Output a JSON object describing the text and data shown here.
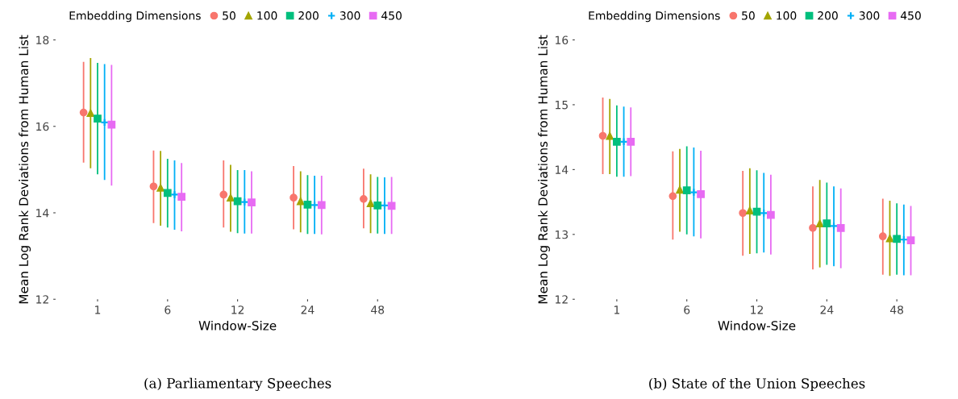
{
  "chart_data": [
    {
      "type": "scatter",
      "xlabel": "Window-Size",
      "ylabel": "Mean Log Rank Deviations from Human List",
      "legend_title": "Embedding Dimensions",
      "legend": "top",
      "grid": false,
      "categories": [
        "1",
        "6",
        "12",
        "24",
        "48"
      ],
      "ylim": [
        12,
        18
      ],
      "yticks": [
        12,
        14,
        16,
        18
      ],
      "annotations": [
        "(a) Parliamentary Speeches"
      ],
      "series": [
        {
          "name": "50",
          "color": "#f8766d",
          "marker": "circle",
          "values": [
            16.32,
            14.61,
            14.42,
            14.35,
            14.32
          ],
          "errors": [
            [
              15.16,
              17.49
            ],
            [
              13.76,
              15.44
            ],
            [
              13.66,
              15.21
            ],
            [
              13.62,
              15.08
            ],
            [
              13.64,
              15.02
            ]
          ]
        },
        {
          "name": "100",
          "color": "#a3a500",
          "marker": "triangle",
          "values": [
            16.31,
            14.58,
            14.35,
            14.27,
            14.22
          ],
          "errors": [
            [
              15.03,
              17.58
            ],
            [
              13.7,
              15.43
            ],
            [
              13.56,
              15.11
            ],
            [
              13.55,
              14.96
            ],
            [
              13.53,
              14.89
            ]
          ]
        },
        {
          "name": "200",
          "color": "#00bf7d",
          "marker": "square",
          "values": [
            16.18,
            14.46,
            14.27,
            14.19,
            14.17
          ],
          "errors": [
            [
              14.89,
              17.47
            ],
            [
              13.66,
              15.25
            ],
            [
              13.53,
              14.99
            ],
            [
              13.51,
              14.87
            ],
            [
              13.52,
              14.83
            ]
          ]
        },
        {
          "name": "300",
          "color": "#00b0f6",
          "marker": "cross",
          "values": [
            16.09,
            14.42,
            14.25,
            14.18,
            14.17
          ],
          "errors": [
            [
              14.76,
              17.44
            ],
            [
              13.61,
              15.21
            ],
            [
              13.52,
              14.99
            ],
            [
              13.51,
              14.86
            ],
            [
              13.51,
              14.82
            ]
          ]
        },
        {
          "name": "450",
          "color": "#e76bf3",
          "marker": "square",
          "values": [
            16.04,
            14.37,
            14.24,
            14.18,
            14.16
          ],
          "errors": [
            [
              14.63,
              17.42
            ],
            [
              13.57,
              15.15
            ],
            [
              13.52,
              14.96
            ],
            [
              13.5,
              14.86
            ],
            [
              13.51,
              14.83
            ]
          ]
        }
      ]
    },
    {
      "type": "scatter",
      "xlabel": "Window-Size",
      "ylabel": "Mean Log Rank Deviations from Human List",
      "legend_title": "Embedding Dimensions",
      "legend": "top",
      "grid": false,
      "categories": [
        "1",
        "6",
        "12",
        "24",
        "48"
      ],
      "ylim": [
        12,
        16
      ],
      "yticks": [
        12,
        13,
        14,
        15,
        16
      ],
      "annotations": [
        "(b) State of the Union Speeches"
      ],
      "series": [
        {
          "name": "50",
          "color": "#f8766d",
          "marker": "circle",
          "values": [
            14.52,
            13.59,
            13.33,
            13.1,
            12.97
          ],
          "errors": [
            [
              13.93,
              15.11
            ],
            [
              12.92,
              14.28
            ],
            [
              12.67,
              13.98
            ],
            [
              12.46,
              13.74
            ],
            [
              12.38,
              13.55
            ]
          ]
        },
        {
          "name": "100",
          "color": "#a3a500",
          "marker": "triangle",
          "values": [
            14.52,
            13.69,
            13.37,
            13.17,
            12.94
          ],
          "errors": [
            [
              13.93,
              15.09
            ],
            [
              13.04,
              14.32
            ],
            [
              12.7,
              14.02
            ],
            [
              12.49,
              13.84
            ],
            [
              12.36,
              13.52
            ]
          ]
        },
        {
          "name": "200",
          "color": "#00bf7d",
          "marker": "square",
          "values": [
            14.43,
            13.68,
            13.35,
            13.17,
            12.93
          ],
          "errors": [
            [
              13.89,
              14.99
            ],
            [
              13.0,
              14.36
            ],
            [
              12.71,
              13.99
            ],
            [
              12.53,
              13.8
            ],
            [
              12.38,
              13.48
            ]
          ]
        },
        {
          "name": "300",
          "color": "#00b0f6",
          "marker": "cross",
          "values": [
            14.43,
            13.65,
            13.33,
            13.13,
            12.92
          ],
          "errors": [
            [
              13.89,
              14.97
            ],
            [
              12.97,
              14.34
            ],
            [
              12.72,
              13.95
            ],
            [
              12.51,
              13.74
            ],
            [
              12.37,
              13.46
            ]
          ]
        },
        {
          "name": "450",
          "color": "#e76bf3",
          "marker": "square",
          "values": [
            14.43,
            13.62,
            13.3,
            13.1,
            12.91
          ],
          "errors": [
            [
              13.9,
              14.96
            ],
            [
              12.94,
              14.29
            ],
            [
              12.69,
              13.92
            ],
            [
              12.48,
              13.71
            ],
            [
              12.37,
              13.44
            ]
          ]
        }
      ]
    }
  ]
}
